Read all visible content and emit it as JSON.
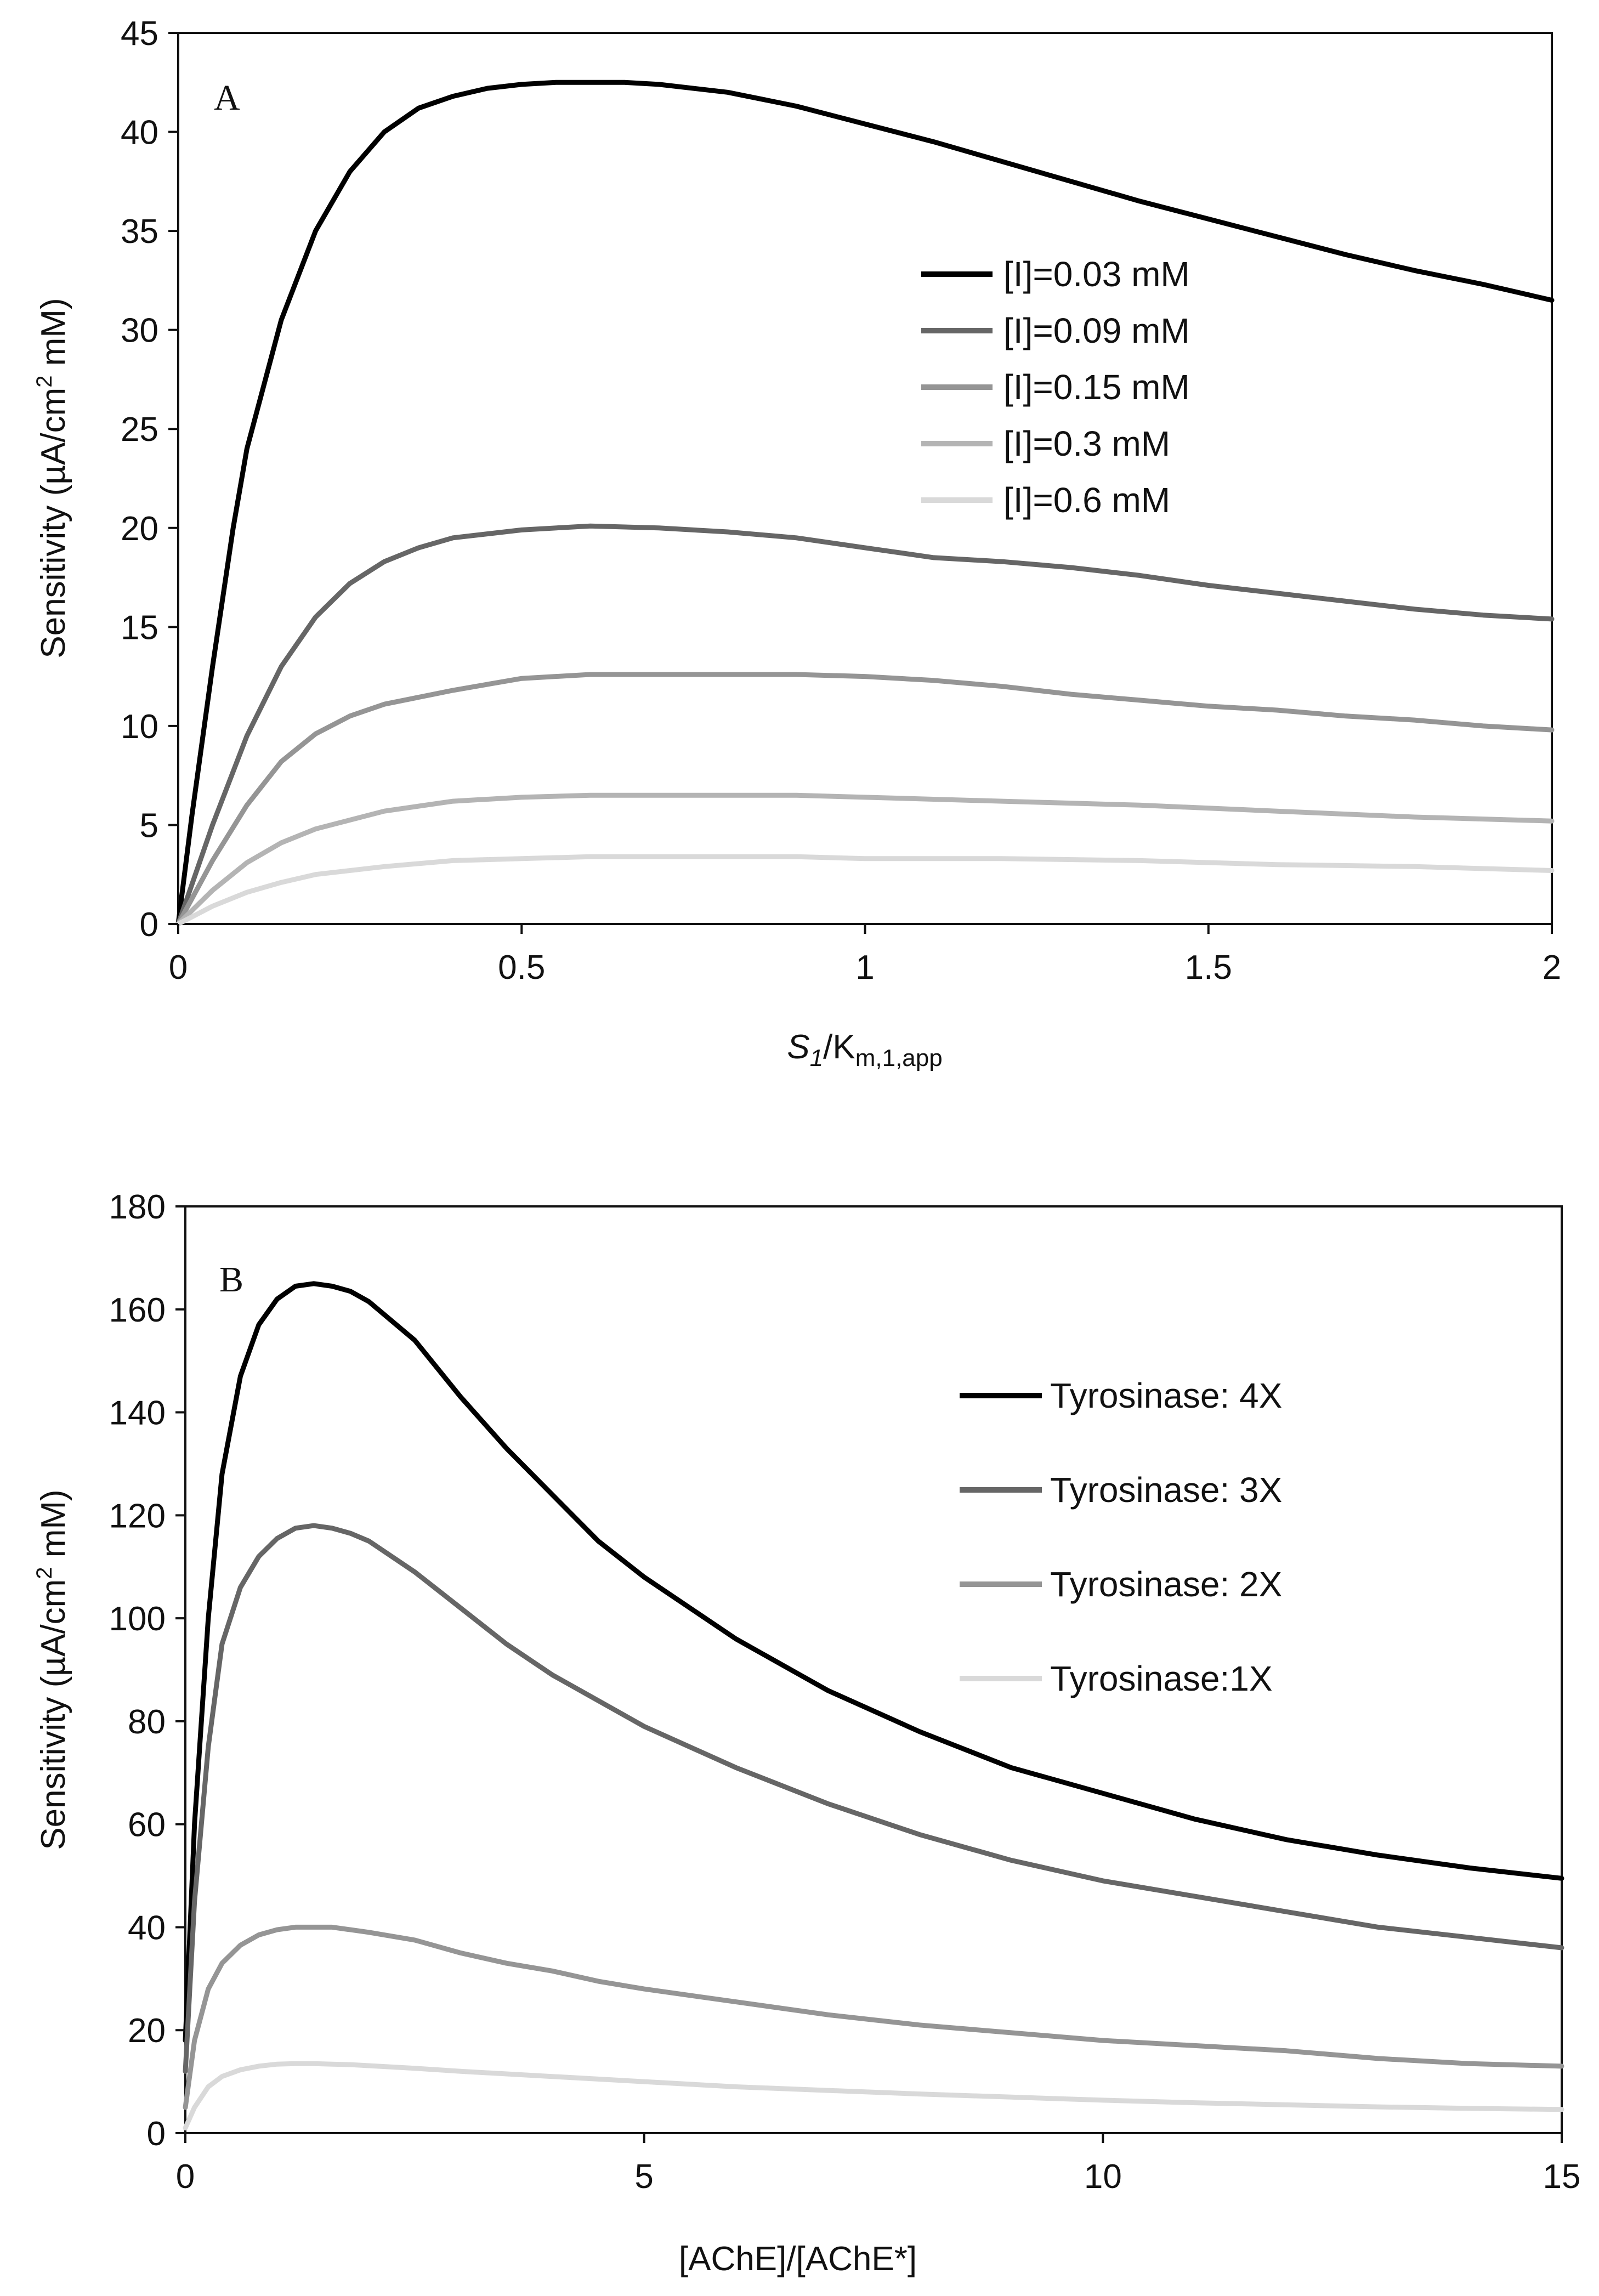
{
  "chart_data": [
    {
      "type": "line",
      "panel_label": "A",
      "xlabel": {
        "main": "S",
        "main_sub": "1",
        "rest": "/K",
        "rest_sub": "m,1,app"
      },
      "ylabel": {
        "before": "Sensitivity (µA/cm",
        "sup": "2",
        "after": " mM)"
      },
      "xlim": [
        0,
        2
      ],
      "ylim": [
        0,
        45
      ],
      "x_ticks": [
        0,
        0.5,
        1,
        1.5,
        2
      ],
      "x_tick_labels": [
        "0",
        "0.5",
        "1",
        "1.5",
        "2"
      ],
      "y_ticks": [
        0,
        5,
        10,
        15,
        20,
        25,
        30,
        35,
        40,
        45
      ],
      "y_tick_labels": [
        "0",
        "5",
        "10",
        "15",
        "20",
        "25",
        "30",
        "35",
        "40",
        "45"
      ],
      "grid": false,
      "legend_position": "upper-right",
      "series": [
        {
          "name": "[I]=0.03 mM",
          "color": "#000000",
          "x": [
            0,
            0.02,
            0.05,
            0.08,
            0.1,
            0.15,
            0.2,
            0.25,
            0.3,
            0.35,
            0.4,
            0.45,
            0.5,
            0.55,
            0.6,
            0.65,
            0.7,
            0.8,
            0.9,
            1.0,
            1.1,
            1.2,
            1.3,
            1.4,
            1.5,
            1.6,
            1.7,
            1.8,
            1.9,
            2.0
          ],
          "y": [
            0,
            5.5,
            13,
            20,
            24,
            30.5,
            35,
            38,
            40,
            41.2,
            41.8,
            42.2,
            42.4,
            42.5,
            42.5,
            42.5,
            42.4,
            42,
            41.3,
            40.4,
            39.5,
            38.5,
            37.5,
            36.5,
            35.6,
            34.7,
            33.8,
            33,
            32.3,
            31.5
          ]
        },
        {
          "name": "[I]=0.09 mM",
          "color": "#666666",
          "x": [
            0,
            0.05,
            0.1,
            0.15,
            0.2,
            0.25,
            0.3,
            0.35,
            0.4,
            0.5,
            0.6,
            0.7,
            0.8,
            0.9,
            1.0,
            1.1,
            1.2,
            1.3,
            1.4,
            1.5,
            1.6,
            1.7,
            1.8,
            1.9,
            2.0
          ],
          "y": [
            0,
            5,
            9.5,
            13,
            15.5,
            17.2,
            18.3,
            19,
            19.5,
            19.9,
            20.1,
            20,
            19.8,
            19.5,
            19,
            18.5,
            18.3,
            18,
            17.6,
            17.1,
            16.7,
            16.3,
            15.9,
            15.6,
            15.4
          ]
        },
        {
          "name": "[I]=0.15 mM",
          "color": "#959595",
          "x": [
            0,
            0.05,
            0.1,
            0.15,
            0.2,
            0.25,
            0.3,
            0.4,
            0.5,
            0.6,
            0.7,
            0.8,
            0.9,
            1.0,
            1.1,
            1.2,
            1.3,
            1.4,
            1.5,
            1.6,
            1.7,
            1.8,
            1.9,
            2.0
          ],
          "y": [
            0,
            3.2,
            6,
            8.2,
            9.6,
            10.5,
            11.1,
            11.8,
            12.4,
            12.6,
            12.6,
            12.6,
            12.6,
            12.5,
            12.3,
            12,
            11.6,
            11.3,
            11,
            10.8,
            10.5,
            10.3,
            10,
            9.8
          ]
        },
        {
          "name": "[I]=0.3 mM",
          "color": "#b4b4b4",
          "x": [
            0,
            0.05,
            0.1,
            0.15,
            0.2,
            0.3,
            0.4,
            0.5,
            0.6,
            0.7,
            0.8,
            0.9,
            1.0,
            1.2,
            1.4,
            1.6,
            1.8,
            2.0
          ],
          "y": [
            0,
            1.7,
            3.1,
            4.1,
            4.8,
            5.7,
            6.2,
            6.4,
            6.5,
            6.5,
            6.5,
            6.5,
            6.4,
            6.2,
            6,
            5.7,
            5.4,
            5.2
          ]
        },
        {
          "name": "[I]=0.6 mM",
          "color": "#d9d9d9",
          "x": [
            0,
            0.05,
            0.1,
            0.15,
            0.2,
            0.3,
            0.4,
            0.5,
            0.6,
            0.7,
            0.8,
            0.9,
            1.0,
            1.2,
            1.4,
            1.6,
            1.8,
            2.0
          ],
          "y": [
            0,
            0.9,
            1.6,
            2.1,
            2.5,
            2.9,
            3.2,
            3.3,
            3.4,
            3.4,
            3.4,
            3.4,
            3.3,
            3.3,
            3.2,
            3,
            2.9,
            2.7
          ]
        }
      ]
    },
    {
      "type": "line",
      "panel_label": "B",
      "xlabel": {
        "text": "[AChE]/[AChE*]"
      },
      "ylabel": {
        "before": "Sensitivity (µA/cm",
        "sup": "2",
        "after": " mM)"
      },
      "xlim": [
        0,
        15
      ],
      "ylim": [
        0,
        180
      ],
      "x_ticks": [
        0,
        5,
        10,
        15
      ],
      "x_tick_labels": [
        "0",
        "5",
        "10",
        "15"
      ],
      "y_ticks": [
        0,
        20,
        40,
        60,
        80,
        100,
        120,
        140,
        160,
        180
      ],
      "y_tick_labels": [
        "0",
        "20",
        "40",
        "60",
        "80",
        "100",
        "120",
        "140",
        "160",
        "180"
      ],
      "grid": false,
      "legend_position": "upper-right",
      "series": [
        {
          "name": "Tyrosinase: 4X",
          "color": "#000000",
          "x": [
            0,
            0.1,
            0.25,
            0.4,
            0.6,
            0.8,
            1.0,
            1.2,
            1.4,
            1.6,
            1.8,
            2.0,
            2.5,
            3.0,
            3.5,
            4.0,
            4.5,
            5.0,
            6.0,
            7.0,
            8.0,
            9.0,
            10.0,
            11.0,
            12.0,
            13.0,
            14.0,
            15.0
          ],
          "y": [
            18,
            60,
            100,
            128,
            147,
            157,
            162,
            164.5,
            165,
            164.5,
            163.5,
            161.5,
            154,
            143,
            133,
            124,
            115,
            108,
            96,
            86,
            78,
            71,
            66,
            61,
            57,
            54,
            51.5,
            49.5
          ]
        },
        {
          "name": "Tyrosinase: 3X",
          "color": "#666666",
          "x": [
            0,
            0.1,
            0.25,
            0.4,
            0.6,
            0.8,
            1.0,
            1.2,
            1.4,
            1.6,
            1.8,
            2.0,
            2.5,
            3.0,
            3.5,
            4.0,
            4.5,
            5.0,
            6.0,
            7.0,
            8.0,
            9.0,
            10.0,
            11.0,
            12.0,
            13.0,
            14.0,
            15.0
          ],
          "y": [
            12,
            45,
            75,
            95,
            106,
            112,
            115.5,
            117.5,
            118,
            117.5,
            116.5,
            115,
            109,
            102,
            95,
            89,
            84,
            79,
            71,
            64,
            58,
            53,
            49,
            46,
            43,
            40,
            38,
            36
          ]
        },
        {
          "name": "Tyrosinase: 2X",
          "color": "#959595",
          "x": [
            0,
            0.1,
            0.25,
            0.4,
            0.6,
            0.8,
            1.0,
            1.2,
            1.4,
            1.6,
            1.8,
            2.0,
            2.5,
            3.0,
            3.5,
            4.0,
            4.5,
            5.0,
            6.0,
            7.0,
            8.0,
            9.0,
            10.0,
            11.0,
            12.0,
            13.0,
            14.0,
            15.0
          ],
          "y": [
            5,
            18,
            28,
            33,
            36.5,
            38.5,
            39.5,
            40,
            40,
            40,
            39.5,
            39,
            37.5,
            35,
            33,
            31.5,
            29.5,
            28,
            25.5,
            23,
            21,
            19.5,
            18,
            17,
            16,
            14.5,
            13.5,
            13
          ]
        },
        {
          "name": "Tyrosinase:1X",
          "color": "#d9d9d9",
          "x": [
            0,
            0.1,
            0.25,
            0.4,
            0.6,
            0.8,
            1.0,
            1.2,
            1.4,
            1.6,
            1.8,
            2.0,
            2.5,
            3.0,
            4.0,
            5.0,
            6.0,
            7.0,
            8.0,
            9.0,
            10.0,
            11.0,
            12.0,
            13.0,
            14.0,
            15.0
          ],
          "y": [
            1,
            5,
            9,
            11,
            12.3,
            13,
            13.4,
            13.5,
            13.5,
            13.4,
            13.3,
            13.1,
            12.6,
            12,
            11,
            10,
            9,
            8.3,
            7.6,
            7,
            6.4,
            5.9,
            5.5,
            5.1,
            4.8,
            4.6
          ]
        }
      ]
    }
  ]
}
